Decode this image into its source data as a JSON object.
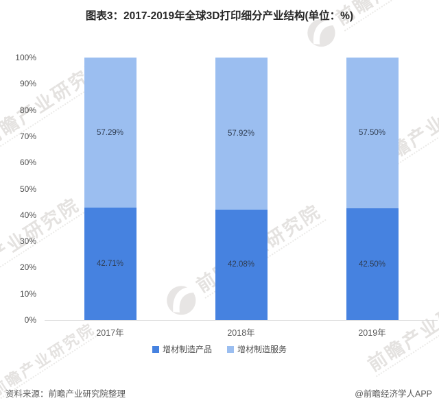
{
  "title": "图表3：2017-2019年全球3D打印细分产业结构(单位：%)",
  "watermark": {
    "text": "前瞻产业研究院"
  },
  "footer": {
    "source": "资料来源：前瞻产业研究院整理",
    "credit": "@前瞻经济学人APP"
  },
  "colors": {
    "products": "#4682E0",
    "services": "#9BBEF0",
    "axis_line": "#D9D9D9",
    "bar_label": "#2F3D52",
    "gray_text": "#595959"
  },
  "chart_data": {
    "type": "bar",
    "stacked": true,
    "percent_stacked": true,
    "title": "图表3：2017-2019年全球3D打印细分产业结构(单位：%)",
    "categories": [
      "2017年",
      "2018年",
      "2019年"
    ],
    "series": [
      {
        "name": "增材制造产品",
        "values": [
          42.71,
          42.08,
          42.5
        ],
        "color": "#4682E0",
        "position": "bottom"
      },
      {
        "name": "增材制造服务",
        "values": [
          57.29,
          57.92,
          57.5
        ],
        "color": "#9BBEF0",
        "position": "top"
      }
    ],
    "data_label_format": "0.00%",
    "xlabel": "",
    "ylabel": "",
    "ylim": [
      0,
      100
    ],
    "y_ticks": [
      "0%",
      "10%",
      "20%",
      "30%",
      "40%",
      "50%",
      "60%",
      "70%",
      "80%",
      "90%",
      "100%"
    ],
    "grid": false,
    "legend_position": "bottom"
  }
}
